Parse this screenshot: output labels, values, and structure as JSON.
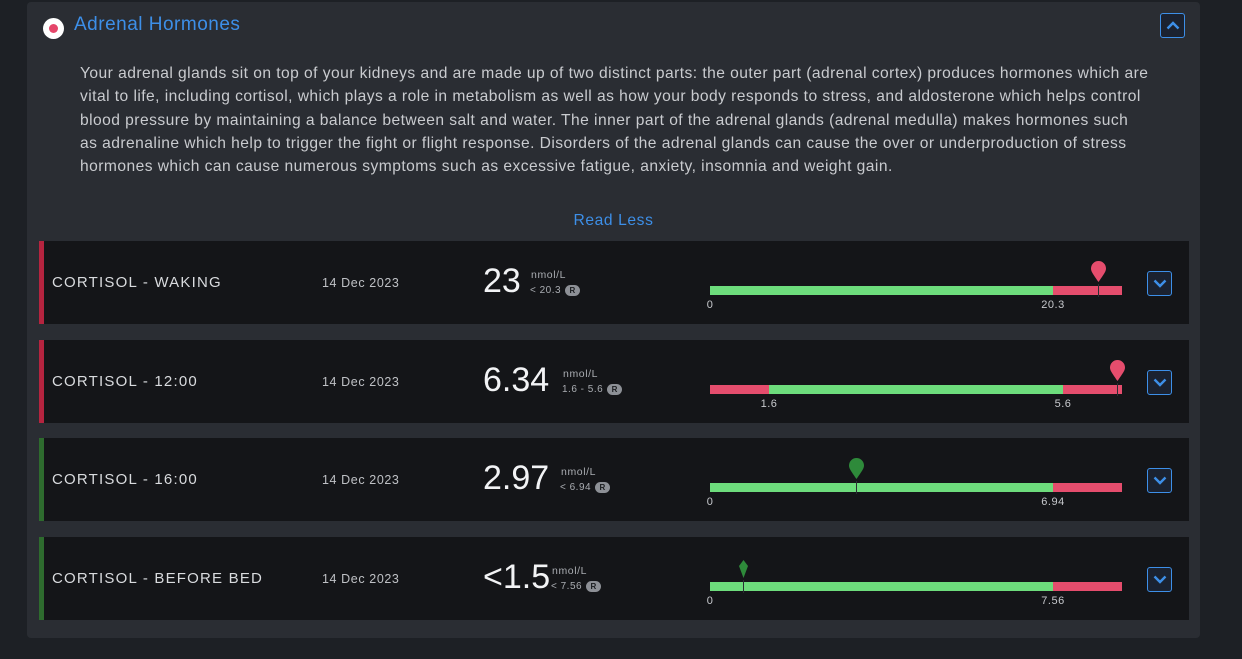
{
  "section": {
    "title": "Adrenal Hormones",
    "description": "Your adrenal glands sit on top of your kidneys and are made up of two distinct parts: the outer part (adrenal cortex) produces hormones which are vital to life, including cortisol, which plays a role in metabolism as well as how your body responds to stress, and aldosterone which helps control blood pressure by maintaining a balance between salt and water. The inner part of the adrenal glands (adrenal medulla) makes hormones such as adrenaline which help to trigger the fight or flight response. Disorders of the adrenal glands can cause the over or underproduction of stress hormones which can cause numerous symptoms such as excessive fatigue, anxiety, insomnia and weight gain.",
    "read_less_label": "Read Less"
  },
  "colors": {
    "accent": "#3d8fe8",
    "in_range": "#6ddc7c",
    "out_of_range": "#e54d6d",
    "flag_red": "#b5243f",
    "flag_green": "#2e6b2e"
  },
  "results": [
    {
      "name": "CORTISOL - WAKING",
      "date": "14 Dec 2023",
      "value": "23",
      "unit": "nmol/L",
      "reference": "< 20.3",
      "ref_badge": "R",
      "status": "high",
      "scale": {
        "low_label": "0",
        "high_label": "20.3"
      }
    },
    {
      "name": "CORTISOL - 12:00",
      "date": "14 Dec 2023",
      "value": "6.34",
      "unit": "nmol/L",
      "reference": "1.6 - 5.6",
      "ref_badge": "R",
      "status": "high",
      "scale": {
        "low_label": "1.6",
        "high_label": "5.6"
      }
    },
    {
      "name": "CORTISOL - 16:00",
      "date": "14 Dec 2023",
      "value": "2.97",
      "unit": "nmol/L",
      "reference": "< 6.94",
      "ref_badge": "R",
      "status": "normal",
      "scale": {
        "low_label": "0",
        "high_label": "6.94"
      }
    },
    {
      "name": "CORTISOL - BEFORE BED",
      "date": "14 Dec 2023",
      "value": "<1.5",
      "unit": "nmol/L",
      "reference": "< 7.56",
      "ref_badge": "R",
      "status": "normal",
      "scale": {
        "low_label": "0",
        "high_label": "7.56"
      }
    }
  ]
}
